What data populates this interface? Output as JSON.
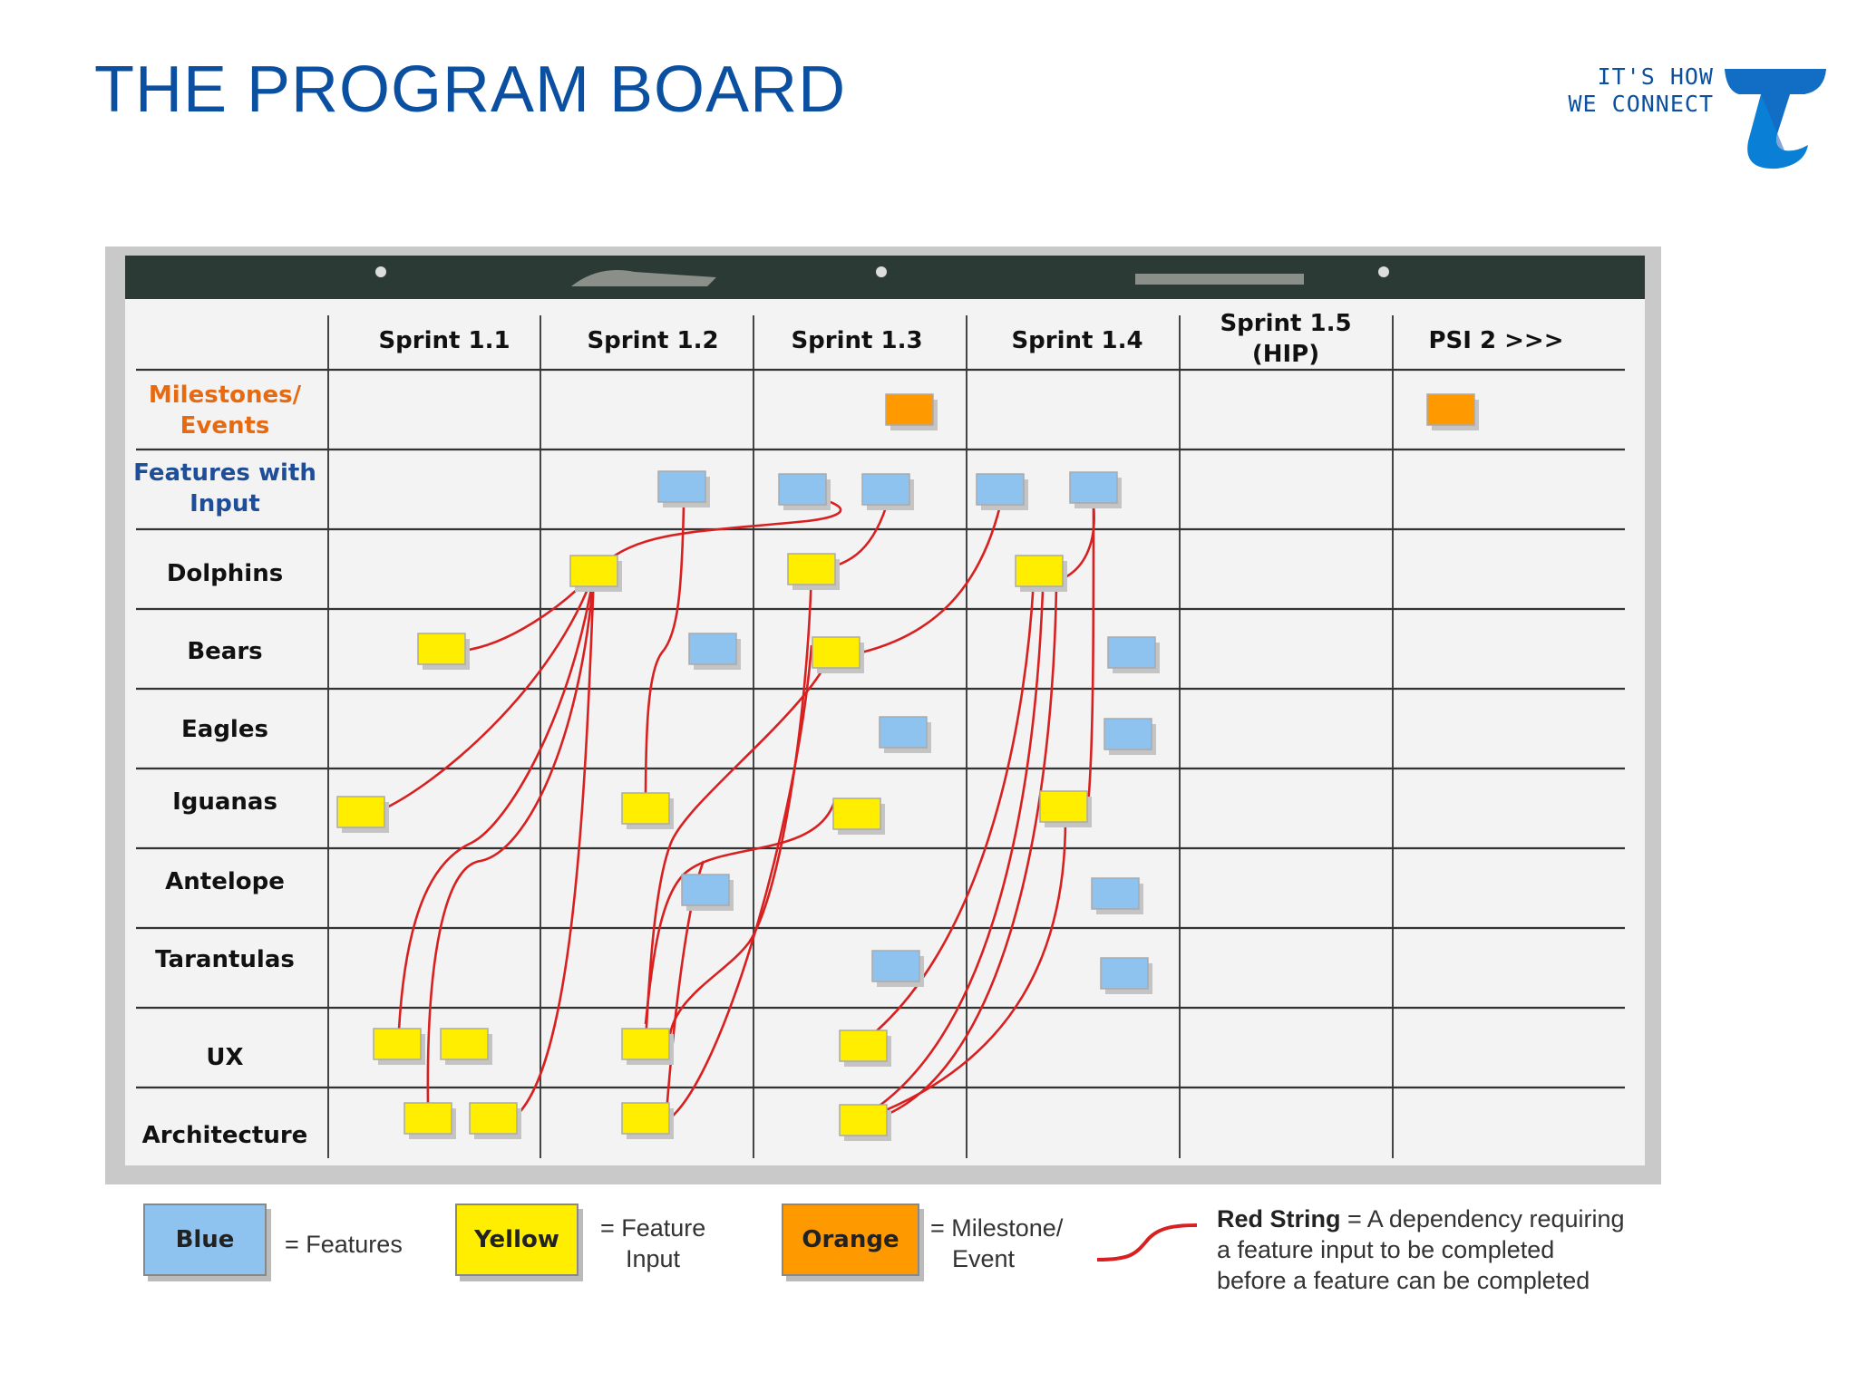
{
  "slide": {
    "title": "THE PROGRAM BOARD",
    "brand_tagline_line1": "IT'S HOW",
    "brand_tagline_line2": "WE CONNECT",
    "brand_logo_icon": "telstra-t-logo-icon"
  },
  "board": {
    "columns": [
      "Sprint 1.1",
      "Sprint 1.2",
      "Sprint 1.3",
      "Sprint 1.4",
      "Sprint 1.5 (HIP)",
      "PSI 2 >>>"
    ],
    "rows": [
      {
        "label": "Milestones/ Events",
        "style": "milestone"
      },
      {
        "label": "Features with Input",
        "style": "feature"
      },
      {
        "label": "Dolphins",
        "style": "team"
      },
      {
        "label": "Bears",
        "style": "team"
      },
      {
        "label": "Eagles",
        "style": "team"
      },
      {
        "label": "Iguanas",
        "style": "team"
      },
      {
        "label": "Antelope",
        "style": "team"
      },
      {
        "label": "Tarantulas",
        "style": "team"
      },
      {
        "label": "UX",
        "style": "team"
      },
      {
        "label": "Architecture",
        "style": "team"
      }
    ],
    "colors": {
      "blue": "#8ec3f0",
      "yellow": "#ffee00",
      "orange": "#ff9900",
      "string": "#d92020",
      "milestone_label": "#e86a10",
      "feature_label": "#1f4e99",
      "header_bar": "#2b3a35"
    }
  },
  "legend": {
    "blue_label": "Blue",
    "blue_desc": "= Features",
    "yellow_label": "Yellow",
    "yellow_desc_line1": "= Feature",
    "yellow_desc_line2": "Input",
    "orange_label": "Orange",
    "orange_desc_line1": "= Milestone/",
    "orange_desc_line2": "Event",
    "red_title": "Red String",
    "red_desc_line1": " = A dependency requiring",
    "red_desc_line2": "a feature input to be completed",
    "red_desc_line3": "before a feature can be completed"
  }
}
